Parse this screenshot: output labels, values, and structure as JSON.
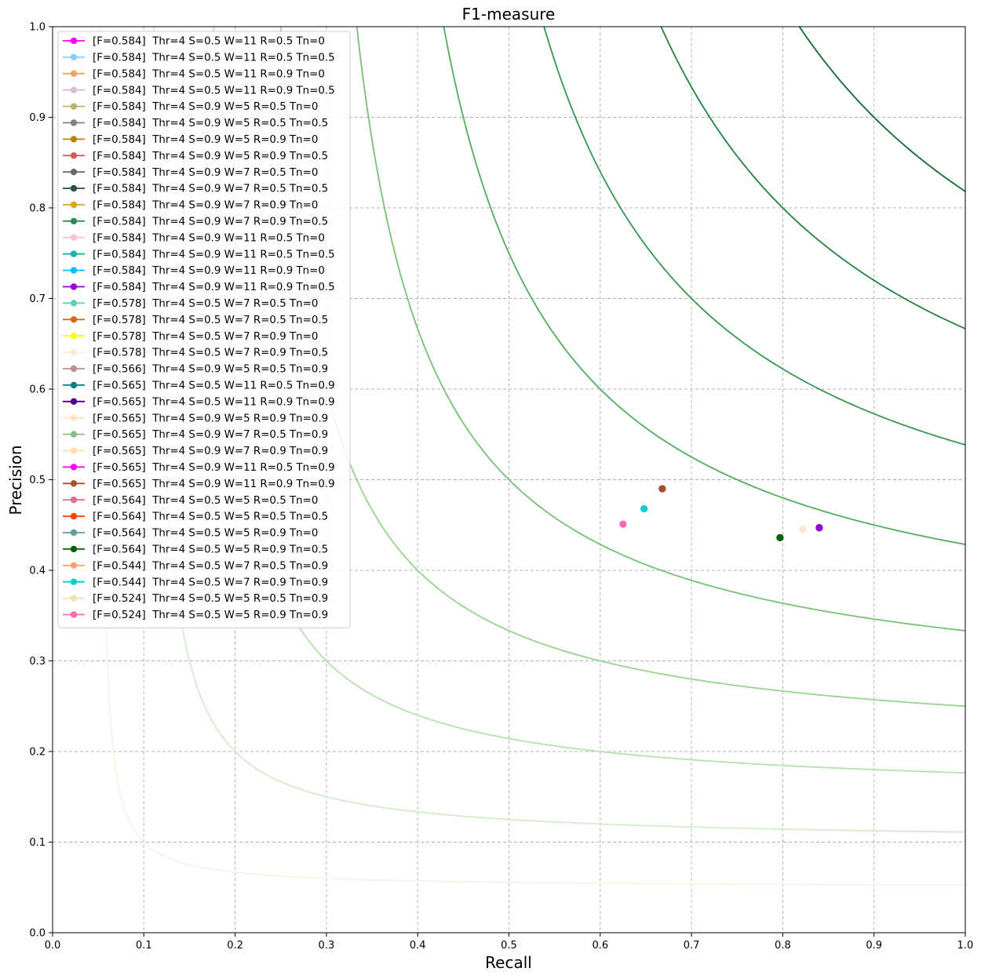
{
  "chart_data": {
    "type": "scatter",
    "title": "F1-measure",
    "xlabel": "Recall",
    "ylabel": "Precision",
    "xlim": [
      0.0,
      1.0
    ],
    "ylim": [
      0.0,
      1.0
    ],
    "xticks": [
      "0.0",
      "0.1",
      "0.2",
      "0.3",
      "0.4",
      "0.5",
      "0.6",
      "0.7",
      "0.8",
      "0.9",
      "1.0"
    ],
    "yticks": [
      "0.0",
      "0.1",
      "0.2",
      "0.3",
      "0.4",
      "0.5",
      "0.6",
      "0.7",
      "0.8",
      "0.9",
      "1.0"
    ],
    "grid": true,
    "legend_position": "upper-left",
    "iso_f1_curves": [
      {
        "f": 0.1,
        "color": "#eef7ea"
      },
      {
        "f": 0.2,
        "color": "#d3ecca"
      },
      {
        "f": 0.3,
        "color": "#b7e1ac"
      },
      {
        "f": 0.4,
        "color": "#98d38f"
      },
      {
        "f": 0.5,
        "color": "#76c275"
      },
      {
        "f": 0.6,
        "color": "#52ad5e"
      },
      {
        "f": 0.7,
        "color": "#36984f"
      },
      {
        "f": 0.8,
        "color": "#21833f"
      },
      {
        "f": 0.9,
        "color": "#0f6b30"
      }
    ],
    "series": [
      {
        "label": "[F=0.584]  Thr=4 S=0.5 W=11 R=0.5 Tn=0",
        "color": "#ff00ff",
        "recall": 0.84,
        "precision": 0.447
      },
      {
        "label": "[F=0.584]  Thr=4 S=0.5 W=11 R=0.5 Tn=0.5",
        "color": "#87cefa",
        "recall": 0.84,
        "precision": 0.447
      },
      {
        "label": "[F=0.584]  Thr=4 S=0.5 W=11 R=0.9 Tn=0",
        "color": "#f4a460",
        "recall": 0.84,
        "precision": 0.447
      },
      {
        "label": "[F=0.584]  Thr=4 S=0.5 W=11 R=0.9 Tn=0.5",
        "color": "#d8bfd8",
        "recall": 0.84,
        "precision": 0.447
      },
      {
        "label": "[F=0.584]  Thr=4 S=0.9 W=5 R=0.5 Tn=0",
        "color": "#bdb76b",
        "recall": 0.84,
        "precision": 0.447
      },
      {
        "label": "[F=0.584]  Thr=4 S=0.9 W=5 R=0.5 Tn=0.5",
        "color": "#808080",
        "recall": 0.84,
        "precision": 0.447
      },
      {
        "label": "[F=0.584]  Thr=4 S=0.9 W=5 R=0.9 Tn=0",
        "color": "#b8860b",
        "recall": 0.84,
        "precision": 0.447
      },
      {
        "label": "[F=0.584]  Thr=4 S=0.9 W=5 R=0.9 Tn=0.5",
        "color": "#cd5c5c",
        "recall": 0.84,
        "precision": 0.447
      },
      {
        "label": "[F=0.584]  Thr=4 S=0.9 W=7 R=0.5 Tn=0",
        "color": "#696969",
        "recall": 0.84,
        "precision": 0.447
      },
      {
        "label": "[F=0.584]  Thr=4 S=0.9 W=7 R=0.5 Tn=0.5",
        "color": "#2f4f4f",
        "recall": 0.84,
        "precision": 0.447
      },
      {
        "label": "[F=0.584]  Thr=4 S=0.9 W=7 R=0.9 Tn=0",
        "color": "#daa520",
        "recall": 0.84,
        "precision": 0.447
      },
      {
        "label": "[F=0.584]  Thr=4 S=0.9 W=7 R=0.9 Tn=0.5",
        "color": "#2e8b57",
        "recall": 0.84,
        "precision": 0.447
      },
      {
        "label": "[F=0.584]  Thr=4 S=0.9 W=11 R=0.5 Tn=0",
        "color": "#ffc0cb",
        "recall": 0.84,
        "precision": 0.447
      },
      {
        "label": "[F=0.584]  Thr=4 S=0.9 W=11 R=0.5 Tn=0.5",
        "color": "#20b2aa",
        "recall": 0.84,
        "precision": 0.447
      },
      {
        "label": "[F=0.584]  Thr=4 S=0.9 W=11 R=0.9 Tn=0",
        "color": "#00bfff",
        "recall": 0.84,
        "precision": 0.447
      },
      {
        "label": "[F=0.584]  Thr=4 S=0.9 W=11 R=0.9 Tn=0.5",
        "color": "#9400d3",
        "recall": 0.84,
        "precision": 0.447
      },
      {
        "label": "[F=0.578]  Thr=4 S=0.5 W=7 R=0.5 Tn=0",
        "color": "#66cdaa",
        "recall": 0.822,
        "precision": 0.445
      },
      {
        "label": "[F=0.578]  Thr=4 S=0.5 W=7 R=0.5 Tn=0.5",
        "color": "#d2691e",
        "recall": 0.822,
        "precision": 0.445
      },
      {
        "label": "[F=0.578]  Thr=4 S=0.5 W=7 R=0.9 Tn=0",
        "color": "#ffff00",
        "recall": 0.822,
        "precision": 0.445
      },
      {
        "label": "[F=0.578]  Thr=4 S=0.5 W=7 R=0.9 Tn=0.5",
        "color": "#faebd7",
        "recall": 0.822,
        "precision": 0.445
      },
      {
        "label": "[F=0.566]  Thr=4 S=0.9 W=5 R=0.5 Tn=0.9",
        "color": "#bc8f8f",
        "recall": 0.668,
        "precision": 0.49
      },
      {
        "label": "[F=0.565]  Thr=4 S=0.5 W=11 R=0.5 Tn=0.9",
        "color": "#008080",
        "recall": 0.668,
        "precision": 0.49
      },
      {
        "label": "[F=0.565]  Thr=4 S=0.5 W=11 R=0.9 Tn=0.9",
        "color": "#4b0082",
        "recall": 0.668,
        "precision": 0.49
      },
      {
        "label": "[F=0.565]  Thr=4 S=0.9 W=5 R=0.9 Tn=0.9",
        "color": "#ffe4c4",
        "recall": 0.668,
        "precision": 0.49
      },
      {
        "label": "[F=0.565]  Thr=4 S=0.9 W=7 R=0.5 Tn=0.9",
        "color": "#8fbc8f",
        "recall": 0.668,
        "precision": 0.49
      },
      {
        "label": "[F=0.565]  Thr=4 S=0.9 W=7 R=0.9 Tn=0.9",
        "color": "#ffdead",
        "recall": 0.668,
        "precision": 0.49
      },
      {
        "label": "[F=0.565]  Thr=4 S=0.9 W=11 R=0.5 Tn=0.9",
        "color": "#ff00ff",
        "recall": 0.668,
        "precision": 0.49
      },
      {
        "label": "[F=0.565]  Thr=4 S=0.9 W=11 R=0.9 Tn=0.9",
        "color": "#a0522d",
        "recall": 0.668,
        "precision": 0.49
      },
      {
        "label": "[F=0.564]  Thr=4 S=0.5 W=5 R=0.5 Tn=0",
        "color": "#db7093",
        "recall": 0.797,
        "precision": 0.436
      },
      {
        "label": "[F=0.564]  Thr=4 S=0.5 W=5 R=0.5 Tn=0.5",
        "color": "#ff4500",
        "recall": 0.797,
        "precision": 0.436
      },
      {
        "label": "[F=0.564]  Thr=4 S=0.5 W=5 R=0.9 Tn=0",
        "color": "#5f9ea0",
        "recall": 0.797,
        "precision": 0.436
      },
      {
        "label": "[F=0.564]  Thr=4 S=0.5 W=5 R=0.9 Tn=0.5",
        "color": "#006400",
        "recall": 0.797,
        "precision": 0.436
      },
      {
        "label": "[F=0.544]  Thr=4 S=0.5 W=7 R=0.5 Tn=0.9",
        "color": "#ffa07a",
        "recall": 0.648,
        "precision": 0.468
      },
      {
        "label": "[F=0.544]  Thr=4 S=0.5 W=7 R=0.9 Tn=0.9",
        "color": "#00ced1",
        "recall": 0.648,
        "precision": 0.468
      },
      {
        "label": "[F=0.524]  Thr=4 S=0.5 W=5 R=0.5 Tn=0.9",
        "color": "#f5deb3",
        "recall": 0.625,
        "precision": 0.451
      },
      {
        "label": "[F=0.524]  Thr=4 S=0.5 W=5 R=0.9 Tn=0.9",
        "color": "#ff69b4",
        "recall": 0.625,
        "precision": 0.451
      }
    ]
  }
}
